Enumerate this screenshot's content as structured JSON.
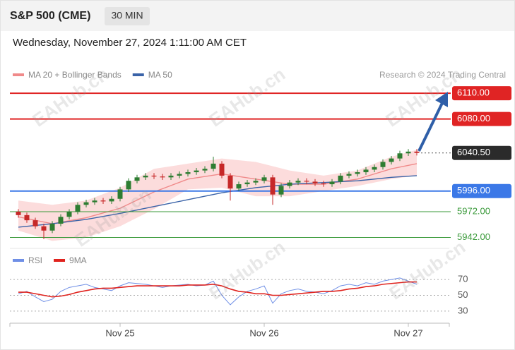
{
  "header": {
    "title": "S&P 500 (CME)",
    "interval": "30 MIN",
    "timestamp": "Wednesday, November 27, 2024 1:11:00 AM CET"
  },
  "credit": "Research © 2024 Trading Central",
  "watermark": "EAHub.cn",
  "chart_data": {
    "type": "candlestick",
    "categories": [
      null,
      null,
      null,
      null,
      null,
      null,
      null,
      null,
      null,
      null,
      null,
      null,
      "Nov 25",
      null,
      null,
      null,
      null,
      null,
      null,
      null,
      null,
      null,
      null,
      null,
      null,
      null,
      null,
      null,
      null,
      "Nov 26",
      null,
      null,
      null,
      null,
      null,
      null,
      null,
      null,
      null,
      null,
      null,
      null,
      null,
      null,
      null,
      null,
      "Nov 27",
      null
    ],
    "open": [
      5972,
      5968,
      5962,
      5955,
      5950,
      5958,
      5966,
      5972,
      5980,
      5983,
      5985,
      5984,
      5987,
      5998,
      6008,
      6012,
      6014,
      6013,
      6012,
      6014,
      6016,
      6018,
      6020,
      6022,
      6028,
      6014,
      5999,
      6004,
      6006,
      6008,
      6012,
      5992,
      6002,
      6006,
      6008,
      6007,
      6005,
      6004,
      6007,
      6014,
      6016,
      6018,
      6021,
      6024,
      6030,
      6034,
      6040,
      6042
    ],
    "high": [
      5975,
      5971,
      5965,
      5958,
      5961,
      5969,
      5975,
      5983,
      5986,
      5988,
      5988,
      5990,
      6001,
      6011,
      6015,
      6017,
      6017,
      6016,
      6017,
      6019,
      6021,
      6023,
      6025,
      6036,
      6031,
      6017,
      6007,
      6009,
      6011,
      6015,
      6015,
      6005,
      6009,
      6011,
      6011,
      6010,
      6008,
      6010,
      6017,
      6019,
      6021,
      6024,
      6027,
      6033,
      6037,
      6043,
      6045,
      6045
    ],
    "low": [
      5965,
      5959,
      5952,
      5940,
      5947,
      5955,
      5963,
      5969,
      5977,
      5980,
      5981,
      5981,
      5984,
      5995,
      6005,
      6009,
      6010,
      6009,
      6009,
      6011,
      6013,
      6015,
      6017,
      6019,
      6011,
      5985,
      5996,
      6001,
      6003,
      6005,
      5980,
      5989,
      5999,
      6003,
      6004,
      6002,
      6001,
      6001,
      6004,
      6011,
      6013,
      6015,
      6018,
      6021,
      6027,
      6031,
      6037,
      6037.5
    ],
    "close": [
      5968,
      5962,
      5955,
      5950,
      5958,
      5966,
      5972,
      5980,
      5983,
      5985,
      5984,
      5987,
      5998,
      6008,
      6012,
      6014,
      6013,
      6012,
      6014,
      6016,
      6018,
      6020,
      6022,
      6028,
      6014,
      5999,
      6004,
      6006,
      6008,
      6012,
      5992,
      6002,
      6006,
      6008,
      6007,
      6005,
      6004,
      6007,
      6014,
      6016,
      6018,
      6021,
      6024,
      6030,
      6034,
      6040,
      6042,
      6040.5
    ],
    "up_color": "#2e7d32",
    "down_color": "#c62828",
    "ylim": [
      5935,
      6120
    ],
    "overlays": [
      {
        "name": "MA 20 + Bollinger Bands",
        "color": "#f08a8a",
        "band_color": "#fbd3d3",
        "x": [
          0,
          4,
          8,
          12,
          16,
          20,
          24,
          28,
          32,
          36,
          40,
          44,
          47
        ],
        "values": [
          5966,
          5958,
          5965,
          5976,
          5995,
          6010,
          6016,
          6010,
          6004,
          6004,
          6010,
          6022,
          6028
        ],
        "upper": [
          5985,
          5980,
          5985,
          6000,
          6022,
          6028,
          6034,
          6030,
          6020,
          6014,
          6020,
          6036,
          6044
        ],
        "lower": [
          5950,
          5938,
          5942,
          5955,
          5975,
          5998,
          6000,
          5990,
          5990,
          5996,
          6002,
          6010,
          6014
        ]
      },
      {
        "name": "MA 50",
        "color": "#3a63a8",
        "x": [
          0,
          4,
          8,
          12,
          16,
          20,
          24,
          28,
          32,
          36,
          40,
          44,
          47
        ],
        "values": [
          5954,
          5958,
          5963,
          5970,
          5978,
          5986,
          5994,
          6000,
          6004,
          6006,
          6008,
          6012,
          6014
        ]
      }
    ],
    "levels": [
      {
        "value": 6110,
        "label": "6110.00",
        "color": "#e02424",
        "boxed": true
      },
      {
        "value": 6080,
        "label": "6080.00",
        "color": "#e02424",
        "boxed": true
      },
      {
        "value": 5996,
        "label": "5996.00",
        "color": "#3b78e7",
        "boxed": true
      },
      {
        "value": 5972,
        "label": "5972.00",
        "color": "#3a9a3a",
        "boxed": false
      },
      {
        "value": 5942,
        "label": "5942.00",
        "color": "#3a9a3a",
        "boxed": false
      }
    ],
    "last_price": {
      "value": 6040.5,
      "label": "6040.50",
      "color": "#2b2b2b"
    },
    "rsi": {
      "ylim": [
        20,
        80
      ],
      "yticks": [
        70,
        50,
        30
      ],
      "series": [
        {
          "name": "RSI",
          "color": "#6f8fe6",
          "values": [
            52,
            55,
            48,
            42,
            45,
            55,
            60,
            62,
            64,
            60,
            58,
            56,
            62,
            66,
            65,
            64,
            62,
            60,
            62,
            63,
            64,
            62,
            63,
            68,
            50,
            38,
            48,
            55,
            58,
            62,
            40,
            52,
            56,
            58,
            55,
            54,
            52,
            56,
            62,
            64,
            62,
            66,
            64,
            68,
            70,
            72,
            68,
            64
          ]
        },
        {
          "name": "9MA",
          "color": "#e0231e",
          "values": [
            54,
            54,
            52,
            50,
            48,
            49,
            51,
            54,
            56,
            58,
            59,
            59,
            60,
            61,
            62,
            62,
            62,
            62,
            62,
            62,
            63,
            63,
            63,
            64,
            62,
            58,
            55,
            54,
            52,
            52,
            50,
            50,
            51,
            52,
            53,
            54,
            55,
            55,
            56,
            58,
            59,
            61,
            62,
            64,
            65,
            66,
            67,
            67
          ]
        }
      ]
    }
  }
}
